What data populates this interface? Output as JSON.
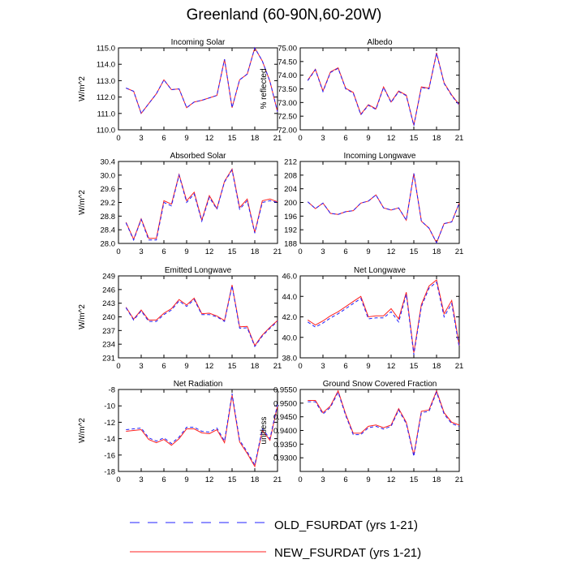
{
  "title": "Greenland (60-90N,60-20W)",
  "legend": [
    {
      "label": "OLD_FSURDAT (yrs 1-21)",
      "color": "#2020ff",
      "dash": true
    },
    {
      "label": "NEW_FSURDAT (yrs 1-21)",
      "color": "#ff2020",
      "dash": false
    }
  ],
  "chart_data": [
    {
      "type": "line",
      "title": "Incoming Solar",
      "ylabel": "W/m^2",
      "x": [
        1,
        2,
        3,
        4,
        5,
        6,
        7,
        8,
        9,
        10,
        11,
        12,
        13,
        14,
        15,
        16,
        17,
        18,
        19,
        20,
        21
      ],
      "xticks": [
        0,
        3,
        6,
        9,
        12,
        15,
        18,
        21
      ],
      "xlim": [
        0,
        21
      ],
      "ylim": [
        110,
        115
      ],
      "yticks": [
        110,
        111,
        112,
        113,
        114,
        115
      ],
      "ytick_labels": [
        "110.0",
        "111.0",
        "112.0",
        "113.0",
        "114.0",
        "115.0"
      ],
      "series": [
        {
          "name": "OLD_FSURDAT (yrs 1-21)",
          "values": [
            112.55,
            112.35,
            111.0,
            111.6,
            112.2,
            113.05,
            112.45,
            112.5,
            111.35,
            111.7,
            111.8,
            111.95,
            112.1,
            114.3,
            111.35,
            113.05,
            113.4,
            115.0,
            114.2,
            112.95,
            111.1
          ]
        },
        {
          "name": "NEW_FSURDAT (yrs 1-21)",
          "values": [
            112.55,
            112.35,
            111.0,
            111.6,
            112.2,
            113.05,
            112.45,
            112.5,
            111.35,
            111.7,
            111.8,
            111.95,
            112.1,
            114.3,
            111.35,
            113.05,
            113.4,
            115.0,
            114.2,
            112.95,
            111.1
          ]
        }
      ]
    },
    {
      "type": "line",
      "title": "Albedo",
      "ylabel": "% reflected",
      "x": [
        1,
        2,
        3,
        4,
        5,
        6,
        7,
        8,
        9,
        10,
        11,
        12,
        13,
        14,
        15,
        16,
        17,
        18,
        19,
        20,
        21
      ],
      "xticks": [
        0,
        3,
        6,
        9,
        12,
        15,
        18,
        21
      ],
      "xlim": [
        0,
        21
      ],
      "ylim": [
        72,
        75
      ],
      "yticks": [
        72,
        72.5,
        73,
        73.5,
        74,
        74.5,
        75
      ],
      "ytick_labels": [
        "72.00",
        "72.50",
        "73.00",
        "73.50",
        "74.00",
        "74.50",
        "75.00"
      ],
      "series": [
        {
          "name": "OLD_FSURDAT (yrs 1-21)",
          "values": [
            73.8,
            74.2,
            73.4,
            74.1,
            74.25,
            73.5,
            73.35,
            72.55,
            72.9,
            72.75,
            73.55,
            73.0,
            73.4,
            73.25,
            72.15,
            73.55,
            73.5,
            74.8,
            73.7,
            73.25,
            72.9
          ]
        },
        {
          "name": "NEW_FSURDAT (yrs 1-21)",
          "values": [
            73.82,
            74.22,
            73.42,
            74.12,
            74.27,
            73.52,
            73.37,
            72.57,
            72.92,
            72.77,
            73.57,
            73.02,
            73.42,
            73.27,
            72.17,
            73.57,
            73.52,
            74.82,
            73.72,
            73.27,
            72.92
          ]
        }
      ]
    },
    {
      "type": "line",
      "title": "Absorbed Solar",
      "ylabel": "W/m^2",
      "x": [
        1,
        2,
        3,
        4,
        5,
        6,
        7,
        8,
        9,
        10,
        11,
        12,
        13,
        14,
        15,
        16,
        17,
        18,
        19,
        20,
        21
      ],
      "xticks": [
        0,
        3,
        6,
        9,
        12,
        15,
        18,
        21
      ],
      "xlim": [
        0,
        21
      ],
      "ylim": [
        28,
        30.4
      ],
      "yticks": [
        28,
        28.4,
        28.8,
        29.2,
        29.6,
        30,
        30.4
      ],
      "ytick_labels": [
        "28.0",
        "28.4",
        "28.8",
        "29.2",
        "29.6",
        "30.0",
        "30.4"
      ],
      "series": [
        {
          "name": "OLD_FSURDAT (yrs 1-21)",
          "values": [
            28.6,
            28.1,
            28.7,
            28.1,
            28.1,
            29.2,
            29.1,
            30.0,
            29.2,
            29.45,
            28.65,
            29.35,
            29.0,
            29.8,
            30.15,
            29.0,
            29.25,
            28.3,
            29.2,
            29.25,
            29.2
          ]
        },
        {
          "name": "NEW_FSURDAT (yrs 1-21)",
          "values": [
            28.62,
            28.12,
            28.72,
            28.15,
            28.15,
            29.25,
            29.15,
            30.02,
            29.25,
            29.5,
            28.68,
            29.4,
            29.02,
            29.82,
            30.18,
            29.05,
            29.3,
            28.32,
            29.25,
            29.3,
            29.22
          ]
        }
      ]
    },
    {
      "type": "line",
      "title": "Incoming Longwave",
      "ylabel": "",
      "x": [
        1,
        2,
        3,
        4,
        5,
        6,
        7,
        8,
        9,
        10,
        11,
        12,
        13,
        14,
        15,
        16,
        17,
        18,
        19,
        20,
        21
      ],
      "xticks": [
        0,
        3,
        6,
        9,
        12,
        15,
        18,
        21
      ],
      "xlim": [
        0,
        21
      ],
      "ylim": [
        188,
        212
      ],
      "yticks": [
        188,
        192,
        196,
        200,
        204,
        208,
        212
      ],
      "ytick_labels": [
        "188",
        "192",
        "196",
        "200",
        "204",
        "208",
        "212"
      ],
      "series": [
        {
          "name": "OLD_FSURDAT (yrs 1-21)",
          "values": [
            200.2,
            198.2,
            199.8,
            196.8,
            196.5,
            197.3,
            197.6,
            199.8,
            200.4,
            202.2,
            198.4,
            197.8,
            198.4,
            194.8,
            208.5,
            194.5,
            192.5,
            188.2,
            193.8,
            194.3,
            199.8
          ]
        },
        {
          "name": "NEW_FSURDAT (yrs 1-21)",
          "values": [
            200.2,
            198.2,
            199.8,
            196.8,
            196.5,
            197.3,
            197.6,
            199.8,
            200.4,
            202.2,
            198.4,
            197.8,
            198.4,
            194.8,
            208.5,
            194.5,
            192.5,
            188.2,
            193.8,
            194.3,
            199.8
          ]
        }
      ]
    },
    {
      "type": "line",
      "title": "Emitted Longwave",
      "ylabel": "W/m^2",
      "x": [
        1,
        2,
        3,
        4,
        5,
        6,
        7,
        8,
        9,
        10,
        11,
        12,
        13,
        14,
        15,
        16,
        17,
        18,
        19,
        20,
        21
      ],
      "xticks": [
        0,
        3,
        6,
        9,
        12,
        15,
        18,
        21
      ],
      "xlim": [
        0,
        21
      ],
      "ylim": [
        231,
        249
      ],
      "yticks": [
        231,
        234,
        237,
        240,
        243,
        246,
        249
      ],
      "ytick_labels": [
        "231",
        "234",
        "237",
        "240",
        "243",
        "246",
        "249"
      ],
      "series": [
        {
          "name": "OLD_FSURDAT (yrs 1-21)",
          "values": [
            242.0,
            239.3,
            241.3,
            239.0,
            239.0,
            240.5,
            241.5,
            243.5,
            242.3,
            243.8,
            240.5,
            240.5,
            240.0,
            239.0,
            246.8,
            237.5,
            237.6,
            233.5,
            235.8,
            237.5,
            239.0
          ]
        },
        {
          "name": "NEW_FSURDAT (yrs 1-21)",
          "values": [
            242.1,
            239.5,
            241.5,
            239.3,
            239.3,
            240.8,
            241.8,
            243.8,
            242.6,
            244.1,
            240.7,
            240.8,
            240.2,
            239.2,
            247.0,
            237.8,
            237.9,
            233.7,
            236.0,
            237.7,
            239.2
          ]
        }
      ]
    },
    {
      "type": "line",
      "title": "Net Longwave",
      "ylabel": "",
      "x": [
        1,
        2,
        3,
        4,
        5,
        6,
        7,
        8,
        9,
        10,
        11,
        12,
        13,
        14,
        15,
        16,
        17,
        18,
        19,
        20,
        21
      ],
      "xticks": [
        0,
        3,
        6,
        9,
        12,
        15,
        18,
        21
      ],
      "xlim": [
        0,
        21
      ],
      "ylim": [
        38,
        46
      ],
      "yticks": [
        38,
        40,
        42,
        44,
        46
      ],
      "ytick_labels": [
        "38.0",
        "40.0",
        "42.0",
        "44.0",
        "46.0"
      ],
      "series": [
        {
          "name": "OLD_FSURDAT (yrs 1-21)",
          "values": [
            41.5,
            41.0,
            41.4,
            41.9,
            42.3,
            42.8,
            43.3,
            43.8,
            41.8,
            41.9,
            41.9,
            42.5,
            41.5,
            44.2,
            38.3,
            43.0,
            44.8,
            45.4,
            42.0,
            43.3,
            39.0
          ]
        },
        {
          "name": "NEW_FSURDAT (yrs 1-21)",
          "values": [
            41.7,
            41.2,
            41.6,
            42.1,
            42.5,
            43.0,
            43.5,
            44.0,
            42.0,
            42.1,
            42.1,
            42.8,
            41.8,
            44.4,
            38.5,
            43.2,
            45.0,
            45.6,
            42.3,
            43.6,
            39.2
          ]
        }
      ]
    },
    {
      "type": "line",
      "title": "Net Radiation",
      "ylabel": "W/m^2",
      "x": [
        1,
        2,
        3,
        4,
        5,
        6,
        7,
        8,
        9,
        10,
        11,
        12,
        13,
        14,
        15,
        16,
        17,
        18,
        19,
        20,
        21
      ],
      "xticks": [
        0,
        3,
        6,
        9,
        12,
        15,
        18,
        21
      ],
      "xlim": [
        0,
        21
      ],
      "ylim": [
        -18,
        -8
      ],
      "yticks": [
        -18,
        -16,
        -14,
        -12,
        -10,
        -8
      ],
      "ytick_labels": [
        "-18",
        "-16",
        "-14",
        "-12",
        "-10",
        "-8"
      ],
      "series": [
        {
          "name": "OLD_FSURDAT (yrs 1-21)",
          "values": [
            -12.9,
            -12.8,
            -12.7,
            -13.9,
            -14.3,
            -13.9,
            -14.6,
            -13.8,
            -12.6,
            -12.6,
            -13.1,
            -13.2,
            -12.7,
            -14.3,
            -8.5,
            -14.2,
            -15.6,
            -17.2,
            -12.8,
            -14.0,
            -9.8
          ]
        },
        {
          "name": "NEW_FSURDAT (yrs 1-21)",
          "values": [
            -13.1,
            -13.0,
            -12.9,
            -14.1,
            -14.5,
            -14.1,
            -14.8,
            -14.0,
            -12.8,
            -12.8,
            -13.3,
            -13.4,
            -12.9,
            -14.5,
            -8.7,
            -14.4,
            -15.8,
            -17.4,
            -13.0,
            -14.2,
            -10.0
          ]
        }
      ]
    },
    {
      "type": "line",
      "title": "Ground Snow Covered Fraction",
      "ylabel": "unitless",
      "x": [
        1,
        2,
        3,
        4,
        5,
        6,
        7,
        8,
        9,
        10,
        11,
        12,
        13,
        14,
        15,
        16,
        17,
        18,
        19,
        20,
        21
      ],
      "xticks": [
        0,
        3,
        6,
        9,
        12,
        15,
        18,
        21
      ],
      "xlim": [
        0,
        21
      ],
      "ylim": [
        0.925,
        0.955
      ],
      "yticks": [
        0.93,
        0.935,
        0.94,
        0.945,
        0.95,
        0.955
      ],
      "ytick_labels": [
        "0.9300",
        "0.9350",
        "0.9400",
        "0.9450",
        "0.9500",
        "0.9550"
      ],
      "series": [
        {
          "name": "OLD_FSURDAT (yrs 1-21)",
          "values": [
            0.9505,
            0.9505,
            0.946,
            0.9485,
            0.954,
            0.9455,
            0.9385,
            0.9385,
            0.941,
            0.9415,
            0.9405,
            0.9415,
            0.9475,
            0.9425,
            0.9305,
            0.9465,
            0.947,
            0.954,
            0.946,
            0.9425,
            0.9415
          ]
        },
        {
          "name": "NEW_FSURDAT (yrs 1-21)",
          "values": [
            0.951,
            0.951,
            0.9465,
            0.949,
            0.9545,
            0.946,
            0.939,
            0.939,
            0.9415,
            0.942,
            0.941,
            0.942,
            0.948,
            0.943,
            0.931,
            0.947,
            0.9475,
            0.9545,
            0.9465,
            0.943,
            0.942
          ]
        }
      ]
    }
  ]
}
